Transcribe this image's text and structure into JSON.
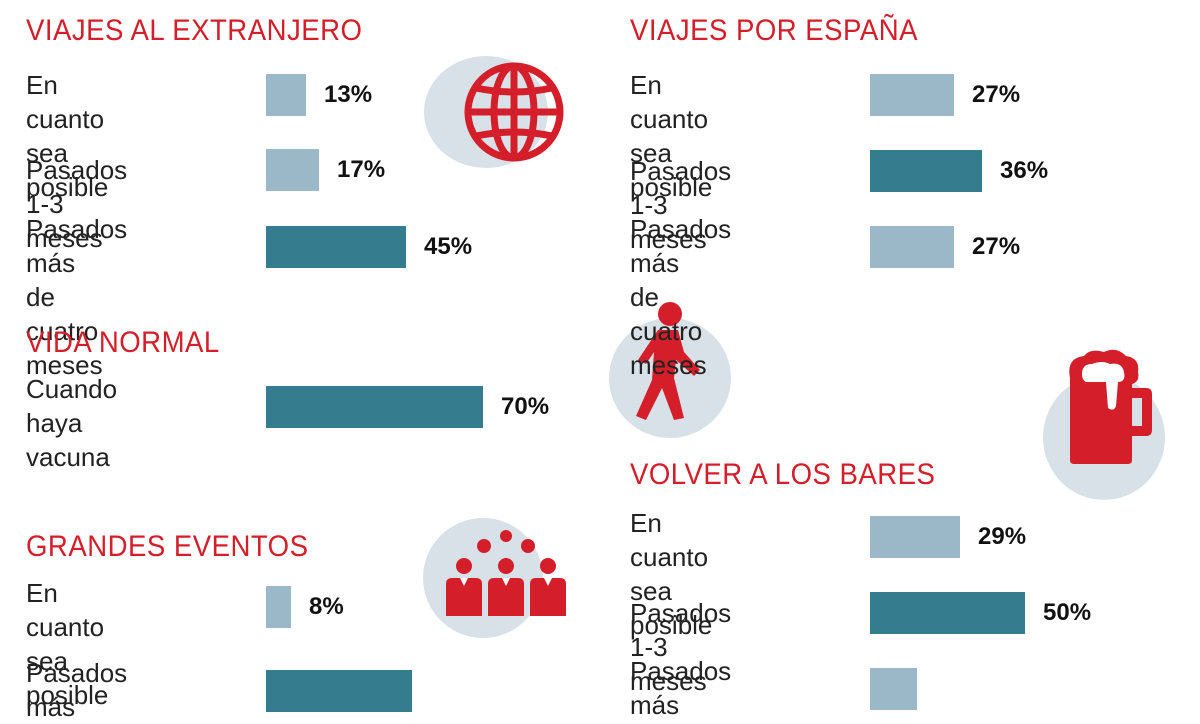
{
  "chart_data": [
    {
      "type": "bar",
      "title": "VIAJES AL EXTRANJERO",
      "categories": [
        "En cuanto\nsea posible",
        "Pasados 1-3 meses",
        "Pasados más\nde cuatro meses"
      ],
      "values": [
        13,
        17,
        45
      ],
      "value_labels": [
        "13%",
        "17%",
        "45%"
      ],
      "highlight": [
        false,
        false,
        true
      ],
      "icon": "globe-icon"
    },
    {
      "type": "bar",
      "title": "VIAJES POR ESPAÑA",
      "categories": [
        "En cuanto\nsea posible",
        "Pasados 1-3 meses",
        "Pasados más\nde cuatro meses"
      ],
      "values": [
        27,
        36,
        27
      ],
      "value_labels": [
        "27%",
        "36%",
        "27%"
      ],
      "highlight": [
        false,
        true,
        false
      ],
      "icon": "walking-person-icon"
    },
    {
      "type": "bar",
      "title": "VIDA NORMAL",
      "categories": [
        "Cuando\nhaya vacuna"
      ],
      "values": [
        70
      ],
      "value_labels": [
        "70%"
      ],
      "highlight": [
        true
      ],
      "icon": "beer-mug-icon"
    },
    {
      "type": "bar",
      "title": "VOLVER A LOS BARES",
      "categories": [
        "En cuanto\nsea posible",
        "Pasados 1-3 meses",
        "Pasados más"
      ],
      "values": [
        29,
        50,
        15
      ],
      "value_labels": [
        "29%",
        "50%",
        ""
      ],
      "highlight": [
        false,
        true,
        false
      ]
    },
    {
      "type": "bar",
      "title": "GRANDES EVENTOS",
      "categories": [
        "En cuanto\nsea posible",
        "Pasados más"
      ],
      "values": [
        8,
        47
      ],
      "value_labels": [
        "8%",
        ""
      ],
      "highlight": [
        false,
        true
      ],
      "icon": "crowd-icon"
    }
  ],
  "colors": {
    "title": "#d41e2a",
    "bar_light": "#9ab8c8",
    "bar_dark": "#347c8e",
    "icon_red": "#d41e2a",
    "icon_bg": "#d8e1e7"
  }
}
